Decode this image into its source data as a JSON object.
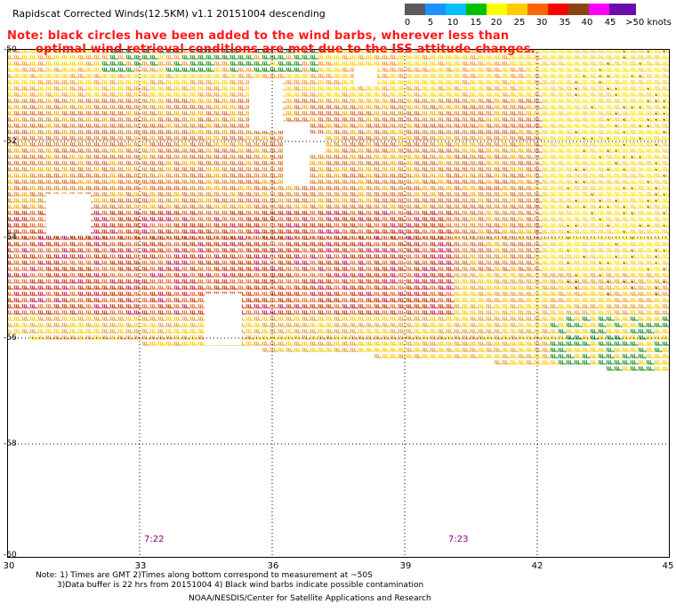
{
  "title": "Rapidscat Corrected Winds(12.5KM) v1.1 20151004 descending",
  "note_lines": [
    "Note: black circles have been added to the wind barbs, wherever less than",
    "optimal wind retrieval conditions are met due to the ISS attitude changes."
  ],
  "legend": {
    "labels": [
      "0",
      "5",
      "10",
      "15",
      "20",
      "25",
      "30",
      "35",
      "40",
      "45",
      ">50 knots"
    ],
    "colors": [
      "#5a5a5a",
      "#1e90ff",
      "#00bfff",
      "#00c000",
      "#ffff00",
      "#ffcc00",
      "#ff6600",
      "#ff0000",
      "#8b4513",
      "#ff00ff",
      "#6a0dad"
    ]
  },
  "map": {
    "lat_labels": [
      "-50",
      "-52",
      "-54",
      "-56",
      "-58",
      "-60"
    ],
    "lon_labels": [
      "30",
      "33",
      "36",
      "39",
      "42",
      "45"
    ],
    "time_labels": [
      "7:22",
      "7:23"
    ]
  },
  "footnotes": [
    "Note: 1) Times are GMT 2)Times along bottom correspond to measurement at ~50S",
    "3)Data buffer is 22 hrs from 20151004 4) Black wind barbs indicate possible contamination",
    "NOAA/NESDIS/Center for Satellite Applications and Research"
  ]
}
